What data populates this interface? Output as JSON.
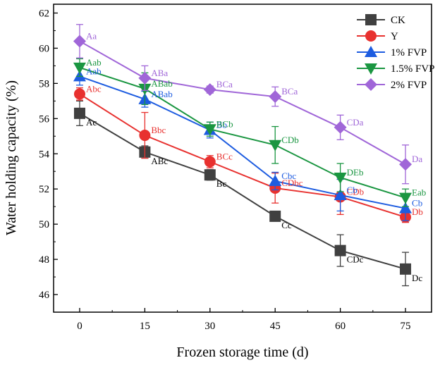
{
  "chart_data": {
    "type": "line",
    "title": "",
    "xlabel": "Frozen storage time (d)",
    "ylabel": "Water holding capacity (%)",
    "x": [
      0,
      15,
      30,
      45,
      60,
      75
    ],
    "x_ticks": [
      "0",
      "15",
      "30",
      "45",
      "60",
      "75"
    ],
    "xlim": [
      -6,
      81
    ],
    "ylim": [
      45,
      62.5
    ],
    "y_ticks": [
      46,
      48,
      50,
      52,
      54,
      56,
      58,
      60,
      62
    ],
    "legend_position": "top-right",
    "series": [
      {
        "name": "CK",
        "color": "#404040",
        "marker": "square",
        "values": [
          56.3,
          54.1,
          52.8,
          50.45,
          48.5,
          47.45
        ],
        "errors": [
          0.7,
          0.35,
          0.3,
          0.1,
          0.9,
          0.95
        ],
        "labels": [
          "Ac",
          "ABc",
          "Bc",
          "Cc",
          "CDc",
          "Dc"
        ],
        "label_color": "#000000"
      },
      {
        "name": "Y",
        "color": "#e8312f",
        "marker": "circle",
        "values": [
          57.4,
          55.05,
          53.55,
          52.05,
          51.55,
          50.4
        ],
        "errors": [
          0.35,
          1.3,
          0.35,
          0.85,
          1.0,
          0.3
        ],
        "labels": [
          "Abc",
          "Bbc",
          "BCc",
          "CDbc",
          "CDb",
          "Db"
        ],
        "label_color": "#e8312f"
      },
      {
        "name": "1% FVP",
        "color": "#1d5ce0",
        "marker": "triangle-up",
        "values": [
          58.4,
          57.1,
          55.35,
          52.45,
          51.65,
          50.9
        ],
        "errors": [
          0.5,
          0.45,
          0.45,
          0.5,
          0.9,
          0.7
        ],
        "labels": [
          "Aab",
          "ABab",
          "Bb",
          "Cbc",
          "Cb",
          "Cb"
        ],
        "label_color": "#1d5ce0"
      },
      {
        "name": "1.5% FVP",
        "color": "#1a9641",
        "marker": "triangle-down",
        "values": [
          58.9,
          57.7,
          55.4,
          54.5,
          52.65,
          51.5
        ],
        "errors": [
          0.5,
          0.9,
          0.4,
          1.05,
          0.8,
          0.5
        ],
        "labels": [
          "Aab",
          "ABab",
          "BCb",
          "CDb",
          "DEb",
          "Eab"
        ],
        "label_color": "#1a9641"
      },
      {
        "name": "2% FVP",
        "color": "#a066d8",
        "marker": "diamond",
        "values": [
          60.4,
          58.3,
          57.65,
          57.25,
          55.5,
          53.4
        ],
        "errors": [
          0.95,
          0.7,
          0.2,
          0.55,
          0.7,
          1.1
        ],
        "labels": [
          "Aa",
          "ABa",
          "BCa",
          "BCa",
          "CDa",
          "Da"
        ],
        "label_color": "#a066d8"
      }
    ]
  }
}
